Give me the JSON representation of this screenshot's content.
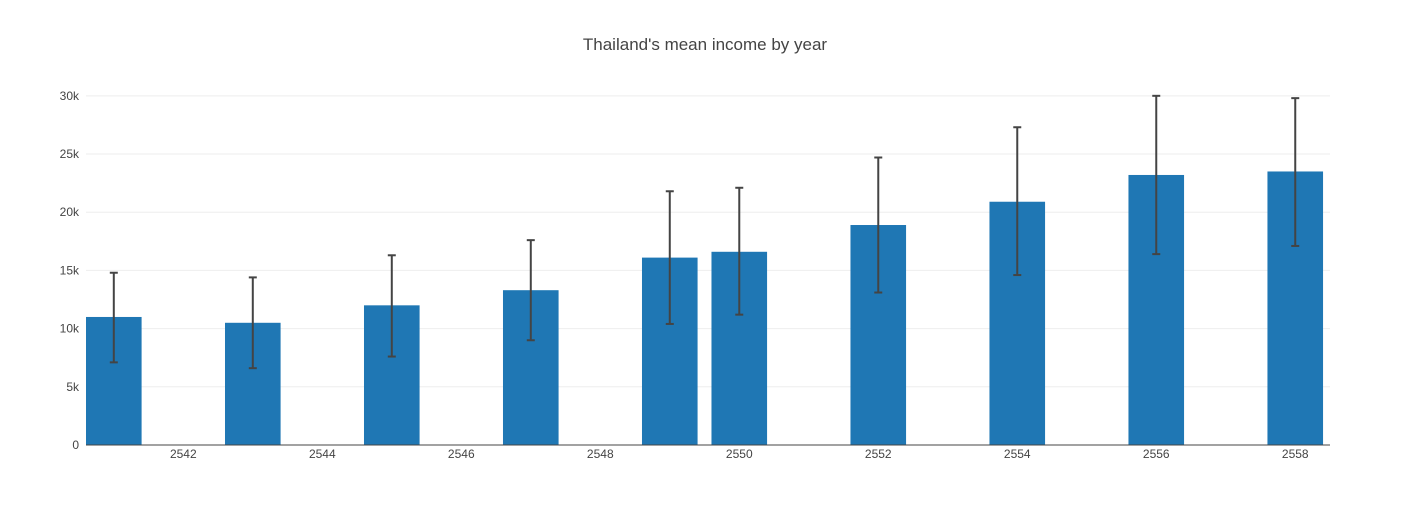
{
  "chart_data": {
    "type": "bar",
    "title": "Thailand's mean income by year",
    "xlabel": "",
    "ylabel": "",
    "x_ticks": [
      "2542",
      "2544",
      "2546",
      "2548",
      "2550",
      "2552",
      "2554",
      "2556",
      "2558"
    ],
    "y_ticks": [
      "0",
      "5k",
      "10k",
      "15k",
      "20k",
      "25k",
      "30k"
    ],
    "xlim": [
      2540.6,
      2558.5
    ],
    "ylim": [
      0,
      30500
    ],
    "grid": true,
    "legend": "none",
    "bar_color": "#1f77b4",
    "error_color": "#444444",
    "bars": [
      {
        "x": 2541,
        "value": 11000,
        "err_low": 7100,
        "err_high": 14800
      },
      {
        "x": 2543,
        "value": 10500,
        "err_low": 6600,
        "err_high": 14400
      },
      {
        "x": 2545,
        "value": 12000,
        "err_low": 7600,
        "err_high": 16300
      },
      {
        "x": 2547,
        "value": 13300,
        "err_low": 9000,
        "err_high": 17600
      },
      {
        "x": 2549,
        "value": 16100,
        "err_low": 10400,
        "err_high": 21800
      },
      {
        "x": 2550,
        "value": 16600,
        "err_low": 11200,
        "err_high": 22100
      },
      {
        "x": 2552,
        "value": 18900,
        "err_low": 13100,
        "err_high": 24700
      },
      {
        "x": 2554,
        "value": 20900,
        "err_low": 14600,
        "err_high": 27300
      },
      {
        "x": 2556,
        "value": 23200,
        "err_low": 16400,
        "err_high": 30000
      },
      {
        "x": 2558,
        "value": 23500,
        "err_low": 17100,
        "err_high": 29800
      }
    ]
  }
}
